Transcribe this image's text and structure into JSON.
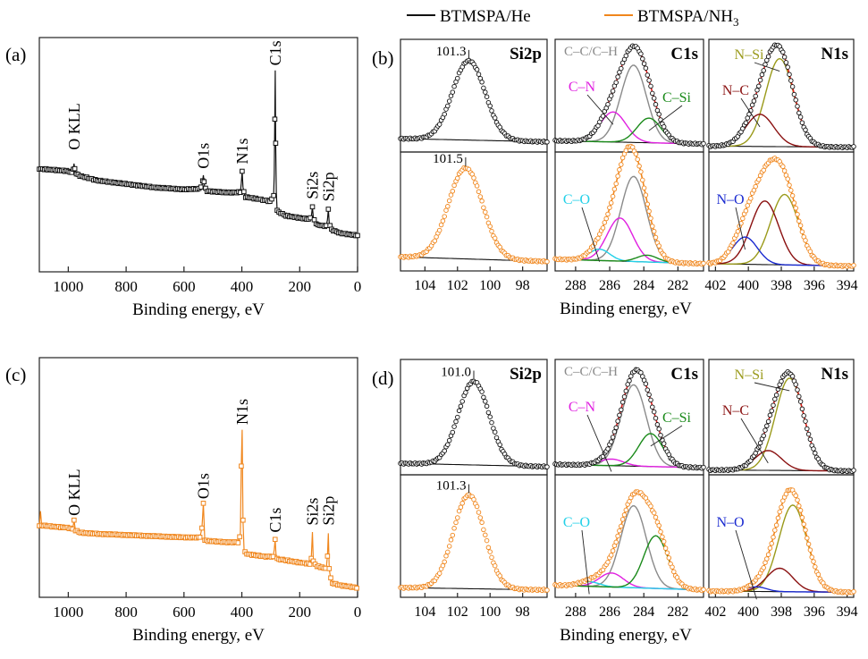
{
  "legend": {
    "he_label": "BTMSPA/He",
    "nh3_label": "BTMSPA/NH",
    "nh3_sub": "3",
    "he_color": "#111111",
    "nh3_color": "#f0861c"
  },
  "colors": {
    "fit_total": "#e02020",
    "background": "#111111",
    "cc_ch": "#8a8a8a",
    "c_n": "#e020e0",
    "c_si": "#1a8a1a",
    "c_o": "#22d0e8",
    "n_si": "#9a9a1a",
    "n_c": "#8a1010",
    "n_o": "#1a2ad0"
  },
  "chart_data": [
    {
      "id": "survey_a",
      "type": "line",
      "panel_label": "(a)",
      "xlabel": "Binding energy, eV",
      "xlim": [
        1100,
        0
      ],
      "ylim": [
        0,
        100
      ],
      "xticks": [
        1000,
        800,
        600,
        400,
        200,
        0
      ],
      "series": [
        {
          "name": "BTMSPA/He",
          "color": "#111111",
          "points": [
            [
              1100,
              44
            ],
            [
              1050,
              43.5
            ],
            [
              1000,
              43
            ],
            [
              985,
              42
            ],
            [
              980,
              46
            ],
            [
              975,
              42
            ],
            [
              960,
              41
            ],
            [
              900,
              39
            ],
            [
              800,
              37.5
            ],
            [
              700,
              36
            ],
            [
              600,
              35.2
            ],
            [
              545,
              35.4
            ],
            [
              538,
              37
            ],
            [
              533,
              41
            ],
            [
              528,
              36
            ],
            [
              520,
              34.5
            ],
            [
              450,
              33.8
            ],
            [
              405,
              34
            ],
            [
              402,
              38
            ],
            [
              399,
              43
            ],
            [
              396,
              36
            ],
            [
              390,
              32
            ],
            [
              340,
              31
            ],
            [
              300,
              30
            ],
            [
              290,
              32.5
            ],
            [
              288,
              42
            ],
            [
              286,
              65
            ],
            [
              284.5,
              86
            ],
            [
              283,
              55
            ],
            [
              281,
              34
            ],
            [
              278,
              26
            ],
            [
              250,
              24
            ],
            [
              200,
              23
            ],
            [
              170,
              22.5
            ],
            [
              160,
              23
            ],
            [
              156,
              27.5
            ],
            [
              153,
              23
            ],
            [
              140,
              20
            ],
            [
              108,
              19.5
            ],
            [
              104,
              22
            ],
            [
              101,
              26.5
            ],
            [
              98,
              21
            ],
            [
              90,
              18
            ],
            [
              60,
              16.5
            ],
            [
              30,
              16
            ],
            [
              0,
              15.5
            ]
          ]
        }
      ],
      "annotations": [
        {
          "text": "O KLL",
          "x": 980,
          "y": 52
        },
        {
          "text": "O1s",
          "x": 533,
          "y": 44
        },
        {
          "text": "N1s",
          "x": 399,
          "y": 46
        },
        {
          "text": "C1s",
          "x": 285,
          "y": 88
        },
        {
          "text": "Si2s",
          "x": 156,
          "y": 31
        },
        {
          "text": "Si2p",
          "x": 101,
          "y": 30
        }
      ]
    },
    {
      "id": "survey_c",
      "type": "line",
      "panel_label": "(c)",
      "xlabel": "Binding energy, eV",
      "xlim": [
        1100,
        0
      ],
      "ylim": [
        0,
        100
      ],
      "xticks": [
        1000,
        800,
        600,
        400,
        200,
        0
      ],
      "series": [
        {
          "name": "BTMSPA/NH3",
          "color": "#f0861c",
          "points": [
            [
              1100,
              30
            ],
            [
              1096,
              36
            ],
            [
              1092,
              30
            ],
            [
              1050,
              29.5
            ],
            [
              1000,
              29
            ],
            [
              985,
              28.5
            ],
            [
              980,
              32
            ],
            [
              975,
              28
            ],
            [
              960,
              27
            ],
            [
              900,
              26.5
            ],
            [
              800,
              26
            ],
            [
              700,
              25.5
            ],
            [
              600,
              25
            ],
            [
              545,
              25
            ],
            [
              538,
              29
            ],
            [
              533,
              39
            ],
            [
              528,
              24
            ],
            [
              520,
              23.5
            ],
            [
              450,
              23
            ],
            [
              410,
              23
            ],
            [
              405,
              27
            ],
            [
              402,
              55
            ],
            [
              399,
              70
            ],
            [
              396,
              32
            ],
            [
              392,
              19
            ],
            [
              380,
              18
            ],
            [
              320,
              17
            ],
            [
              292,
              17
            ],
            [
              288,
              20
            ],
            [
              285,
              24
            ],
            [
              282,
              18
            ],
            [
              278,
              16
            ],
            [
              250,
              15.5
            ],
            [
              200,
              14.5
            ],
            [
              165,
              14
            ],
            [
              160,
              16
            ],
            [
              156,
              27
            ],
            [
              153,
              15
            ],
            [
              140,
              13
            ],
            [
              108,
              12
            ],
            [
              104,
              17
            ],
            [
              101,
              26.5
            ],
            [
              98,
              12
            ],
            [
              90,
              6
            ],
            [
              60,
              5
            ],
            [
              30,
              4.5
            ],
            [
              0,
              4
            ]
          ]
        }
      ],
      "annotations": [
        {
          "text": "O KLL",
          "x": 980,
          "y": 34
        },
        {
          "text": "O1s",
          "x": 533,
          "y": 41
        },
        {
          "text": "N1s",
          "x": 399,
          "y": 72
        },
        {
          "text": "C1s",
          "x": 285,
          "y": 27
        },
        {
          "text": "Si2s",
          "x": 156,
          "y": 30
        },
        {
          "text": "Si2p",
          "x": 101,
          "y": 30
        }
      ]
    },
    {
      "id": "hr_b",
      "panel_label": "(b)",
      "type": "line",
      "xlabel": "Binding energy, eV",
      "panels": [
        {
          "element": "Si2p",
          "xlim": [
            105.5,
            96.5
          ],
          "xticks": [
            104,
            102,
            100,
            98
          ],
          "upper": {
            "data_color": "#111111",
            "peak_label": "101.3",
            "peak": {
              "center": 101.3,
              "height": 0.74,
              "width": 1.0
            },
            "background": [
              0.1,
              0.07
            ],
            "components": []
          },
          "lower": {
            "data_color": "#f0861c",
            "peak_label": "101.5",
            "peak": {
              "center": 101.5,
              "height": 0.8,
              "width": 1.05
            },
            "background": [
              0.1,
              0.06
            ],
            "components": []
          }
        },
        {
          "element": "C1s",
          "xlim": [
            289.2,
            280.5
          ],
          "xticks": [
            288,
            286,
            284,
            282
          ],
          "upper": {
            "data_color": "#111111",
            "background": [
              0.08,
              0.05
            ],
            "components": [
              {
                "label": "C–C/C–H",
                "center": 284.6,
                "height": 0.72,
                "width": 0.75,
                "color": "#8a8a8a"
              },
              {
                "label": "C–N",
                "center": 285.8,
                "height": 0.28,
                "width": 0.75,
                "color": "#e020e0"
              },
              {
                "label": "C–Si",
                "center": 283.7,
                "height": 0.23,
                "width": 0.7,
                "color": "#1a8a1a"
              }
            ]
          },
          "lower": {
            "data_color": "#f0861c",
            "background": [
              0.08,
              0.04
            ],
            "components": [
              {
                "label": "C–C/C–H",
                "center": 284.6,
                "height": 0.75,
                "width": 0.75,
                "color": "#8a8a8a"
              },
              {
                "label": "C–N",
                "center": 285.4,
                "height": 0.38,
                "width": 0.75,
                "color": "#e020e0"
              },
              {
                "label": "C–O",
                "center": 286.6,
                "height": 0.1,
                "width": 0.6,
                "color": "#22d0e8"
              },
              {
                "label": "C–Si",
                "center": 283.8,
                "height": 0.06,
                "width": 0.6,
                "color": "#1a8a1a"
              }
            ]
          }
        },
        {
          "element": "N1s",
          "xlim": [
            402.4,
            393.6
          ],
          "xticks": [
            402,
            400,
            398,
            396,
            394
          ],
          "upper": {
            "data_color": "#111111",
            "background": [
              0.03,
              0.02
            ],
            "components": [
              {
                "label": "N–Si",
                "center": 398.1,
                "height": 0.82,
                "width": 0.85,
                "color": "#9a9a1a"
              },
              {
                "label": "N–C",
                "center": 399.3,
                "height": 0.3,
                "width": 0.85,
                "color": "#8a1010"
              }
            ]
          },
          "lower": {
            "data_color": "#f0861c",
            "background": [
              0.04,
              0.02
            ],
            "components": [
              {
                "label": "N–Si",
                "center": 397.8,
                "height": 0.62,
                "width": 0.85,
                "color": "#9a9a1a"
              },
              {
                "label": "N–C",
                "center": 399.0,
                "height": 0.56,
                "width": 0.85,
                "color": "#8a1010"
              },
              {
                "label": "N–O",
                "center": 400.2,
                "height": 0.24,
                "width": 0.75,
                "color": "#1a2ad0"
              }
            ]
          }
        }
      ]
    },
    {
      "id": "hr_d",
      "panel_label": "(d)",
      "type": "line",
      "xlabel": "Binding energy, eV",
      "panels": [
        {
          "element": "Si2p",
          "xlim": [
            105.5,
            96.5
          ],
          "xticks": [
            104,
            102,
            100,
            98
          ],
          "upper": {
            "data_color": "#111111",
            "peak_label": "101.0",
            "peak": {
              "center": 101.0,
              "height": 0.76,
              "width": 0.95
            },
            "background": [
              0.08,
              0.05
            ],
            "components": []
          },
          "lower": {
            "data_color": "#f0861c",
            "peak_label": "101.3",
            "peak": {
              "center": 101.3,
              "height": 0.8,
              "width": 0.95
            },
            "background": [
              0.06,
              0.04
            ],
            "components": []
          }
        },
        {
          "element": "C1s",
          "xlim": [
            289.2,
            280.5
          ],
          "xticks": [
            288,
            286,
            284,
            282
          ],
          "upper": {
            "data_color": "#111111",
            "background": [
              0.07,
              0.04
            ],
            "components": [
              {
                "label": "C–C/C–H",
                "center": 284.6,
                "height": 0.74,
                "width": 0.75,
                "color": "#8a8a8a"
              },
              {
                "label": "C–N",
                "center": 285.9,
                "height": 0.06,
                "width": 0.7,
                "color": "#e020e0"
              },
              {
                "label": "C–Si",
                "center": 283.6,
                "height": 0.3,
                "width": 0.7,
                "color": "#1a8a1a"
              }
            ]
          },
          "lower": {
            "data_color": "#f0861c",
            "background": [
              0.08,
              0.04
            ],
            "components": [
              {
                "label": "C–C/C–H",
                "center": 284.6,
                "height": 0.7,
                "width": 0.75,
                "color": "#8a8a8a"
              },
              {
                "label": "C–N",
                "center": 285.9,
                "height": 0.12,
                "width": 0.7,
                "color": "#e020e0"
              },
              {
                "label": "C–O",
                "center": 287.2,
                "height": 0.04,
                "width": 0.6,
                "color": "#22d0e8"
              },
              {
                "label": "C–Si",
                "center": 283.3,
                "height": 0.45,
                "width": 0.7,
                "color": "#1a8a1a"
              }
            ]
          }
        },
        {
          "element": "N1s",
          "xlim": [
            402.4,
            393.6
          ],
          "xticks": [
            402,
            400,
            398,
            396,
            394
          ],
          "upper": {
            "data_color": "#111111",
            "background": [
              0.02,
              0.01
            ],
            "components": [
              {
                "label": "N–Si",
                "center": 397.5,
                "height": 0.84,
                "width": 0.85,
                "color": "#9a9a1a"
              },
              {
                "label": "N–C",
                "center": 398.8,
                "height": 0.18,
                "width": 0.8,
                "color": "#8a1010"
              }
            ]
          },
          "lower": {
            "data_color": "#f0861c",
            "background": [
              0.03,
              0.02
            ],
            "components": [
              {
                "label": "N–Si",
                "center": 397.3,
                "height": 0.74,
                "width": 0.85,
                "color": "#9a9a1a"
              },
              {
                "label": "N–C",
                "center": 398.1,
                "height": 0.2,
                "width": 0.8,
                "color": "#8a1010"
              },
              {
                "label": "N–O",
                "center": 399.5,
                "height": 0.04,
                "width": 0.6,
                "color": "#1a2ad0"
              }
            ]
          }
        }
      ]
    }
  ]
}
